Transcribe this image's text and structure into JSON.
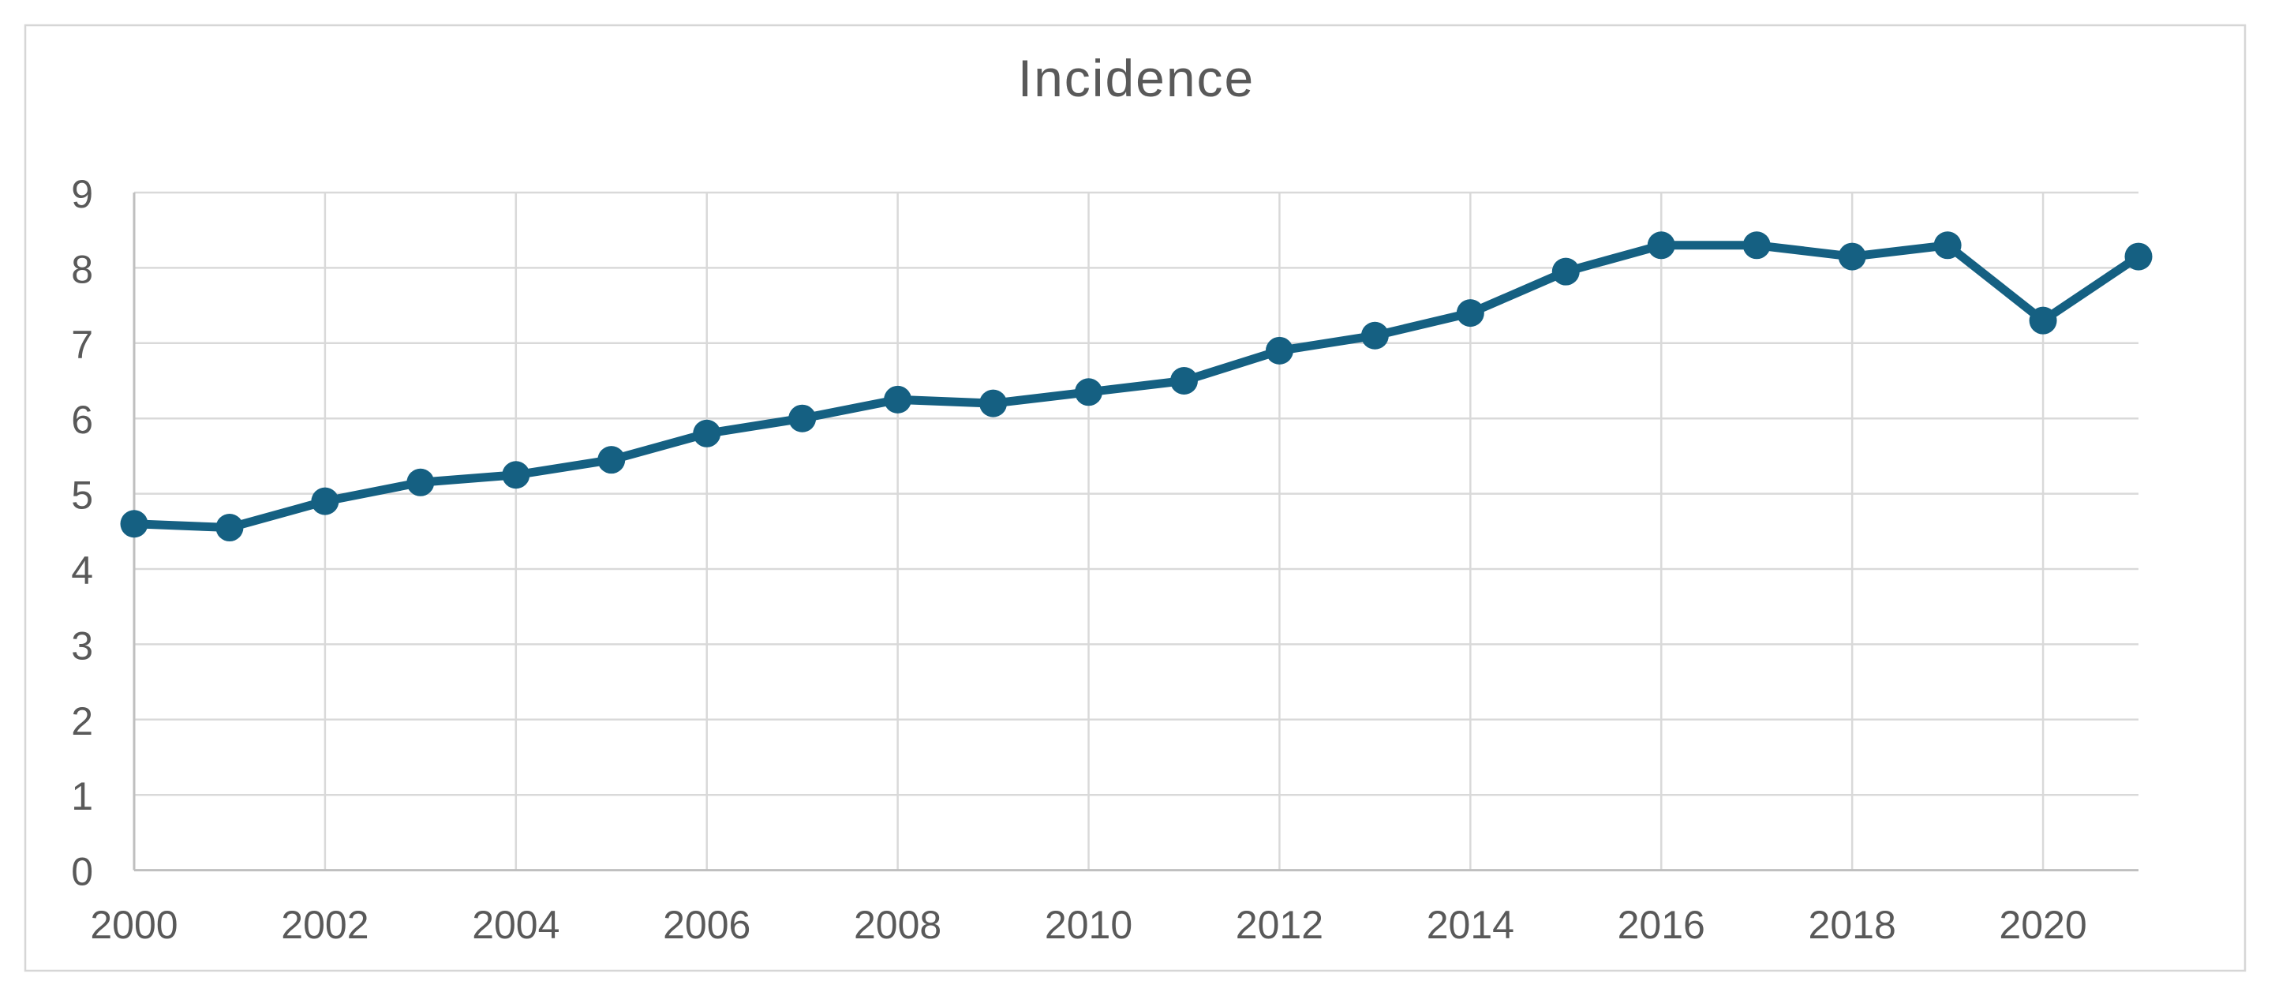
{
  "page": {
    "background": "#FFFFFF"
  },
  "chart": {
    "title": "Incidence",
    "colors": {
      "series_line": "#156082",
      "marker_fill": "#156082",
      "gridline": "#D9D9D9",
      "axis_line": "#BFBFBF",
      "tick_label_text": "#595959",
      "title_text": "#595959",
      "chart_border": "#D6D6D6",
      "background": "#FFFFFF"
    }
  },
  "chart_data": {
    "type": "line",
    "title": "Incidence",
    "x": [
      2000,
      2001,
      2002,
      2003,
      2004,
      2005,
      2006,
      2007,
      2008,
      2009,
      2010,
      2011,
      2012,
      2013,
      2014,
      2015,
      2016,
      2017,
      2018,
      2019,
      2020,
      2021
    ],
    "series": [
      {
        "name": "Incidence",
        "values": [
          4.6,
          4.55,
          4.9,
          5.15,
          5.25,
          5.45,
          5.8,
          6.0,
          6.25,
          6.2,
          6.35,
          6.5,
          6.9,
          7.1,
          7.4,
          7.95,
          8.3,
          8.3,
          8.15,
          8.3,
          7.3,
          8.15
        ]
      }
    ],
    "x_ticks": [
      2000,
      2002,
      2004,
      2006,
      2008,
      2010,
      2012,
      2014,
      2016,
      2018,
      2020
    ],
    "x_tick_labels": [
      "2000",
      "2002",
      "2004",
      "2006",
      "2008",
      "2010",
      "2012",
      "2014",
      "2016",
      "2018",
      "2020"
    ],
    "y_ticks": [
      0,
      1,
      2,
      3,
      4,
      5,
      6,
      7,
      8,
      9
    ],
    "y_tick_labels": [
      "0",
      "1",
      "2",
      "3",
      "4",
      "5",
      "6",
      "7",
      "8",
      "9"
    ],
    "xlim": [
      2000,
      2021
    ],
    "ylim": [
      0,
      9
    ],
    "grid": true,
    "legend_position": "none",
    "marker": "circle"
  }
}
